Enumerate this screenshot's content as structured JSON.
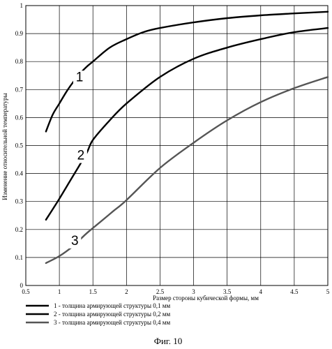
{
  "chart_data": {
    "type": "line",
    "xlabel": "Размер стороны кубической формы, мм",
    "ylabel": "Изменение относительной температуры",
    "xlim": [
      0.5,
      5
    ],
    "ylim": [
      0,
      1
    ],
    "xticks": [
      "0.5",
      "1",
      "1.5",
      "2",
      "2.5",
      "3",
      "3.5",
      "4",
      "4.5",
      "5"
    ],
    "yticks": [
      "0",
      "0.1",
      "0.2",
      "0.3",
      "0.4",
      "0.5",
      "0.6",
      "0.7",
      "0.8",
      "0.9",
      "1"
    ],
    "grid": true,
    "legend_position": "bottom-left",
    "series": [
      {
        "name": "1 - толщина армирующей структуры 0,1 мм",
        "label": "1",
        "color": "#000000",
        "x": [
          0.8,
          0.9,
          1.0,
          1.1,
          1.2,
          1.3,
          1.4,
          1.5,
          1.75,
          2.0,
          2.25,
          2.5,
          3.0,
          3.5,
          4.0,
          4.5,
          5.0
        ],
        "y": [
          0.55,
          0.61,
          0.65,
          0.69,
          0.725,
          0.755,
          0.78,
          0.8,
          0.85,
          0.88,
          0.905,
          0.92,
          0.94,
          0.955,
          0.965,
          0.972,
          0.978
        ]
      },
      {
        "name": "2 - толщина армирующей структуры 0,2 мм",
        "label": "2",
        "color": "#000000",
        "x": [
          0.8,
          1.0,
          1.2,
          1.4,
          1.5,
          1.75,
          2.0,
          2.5,
          3.0,
          3.5,
          4.0,
          4.5,
          5.0
        ],
        "y": [
          0.235,
          0.31,
          0.39,
          0.47,
          0.52,
          0.59,
          0.65,
          0.745,
          0.81,
          0.85,
          0.88,
          0.905,
          0.92
        ]
      },
      {
        "name": "3 - толщина армирующей структуры 0,4 мм",
        "label": "3",
        "color": "#555555",
        "x": [
          0.8,
          1.0,
          1.2,
          1.4,
          1.6,
          1.8,
          2.0,
          2.5,
          3.0,
          3.5,
          4.0,
          4.5,
          5.0
        ],
        "y": [
          0.08,
          0.105,
          0.14,
          0.185,
          0.225,
          0.265,
          0.305,
          0.42,
          0.51,
          0.59,
          0.655,
          0.705,
          0.745
        ]
      }
    ]
  },
  "caption": "Фиг. 10"
}
